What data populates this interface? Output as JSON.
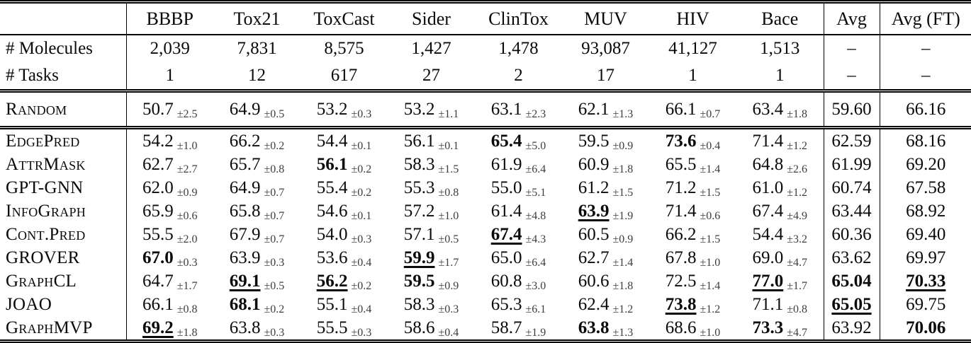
{
  "table": {
    "pm_prefix": "±",
    "columns": [
      "BBBP",
      "Tox21",
      "ToxCast",
      "Sider",
      "ClinTox",
      "MUV",
      "HIV",
      "Bace",
      "Avg",
      "Avg (FT)"
    ],
    "stats_rows": [
      {
        "label": "# Molecules",
        "values": [
          "2,039",
          "7,831",
          "8,575",
          "1,427",
          "1,478",
          "93,087",
          "41,127",
          "1,513",
          "–",
          "–"
        ]
      },
      {
        "label": "# Tasks",
        "values": [
          "1",
          "12",
          "617",
          "27",
          "2",
          "17",
          "1",
          "1",
          "–",
          "–"
        ]
      }
    ],
    "baseline_row": {
      "label": "Random",
      "cells": [
        {
          "v": "50.7",
          "pm": "2.5",
          "s": ""
        },
        {
          "v": "64.9",
          "pm": "0.5",
          "s": ""
        },
        {
          "v": "53.2",
          "pm": "0.3",
          "s": ""
        },
        {
          "v": "53.2",
          "pm": "1.1",
          "s": ""
        },
        {
          "v": "63.1",
          "pm": "2.3",
          "s": ""
        },
        {
          "v": "62.1",
          "pm": "1.3",
          "s": ""
        },
        {
          "v": "66.1",
          "pm": "0.7",
          "s": ""
        },
        {
          "v": "63.4",
          "pm": "1.8",
          "s": ""
        }
      ],
      "avg": {
        "v": "59.60",
        "s": ""
      },
      "avg_ft": {
        "v": "66.16",
        "s": ""
      }
    },
    "method_rows": [
      {
        "label": "EdgePred",
        "cells": [
          {
            "v": "54.2",
            "pm": "1.0",
            "s": ""
          },
          {
            "v": "66.2",
            "pm": "0.2",
            "s": ""
          },
          {
            "v": "54.4",
            "pm": "0.1",
            "s": ""
          },
          {
            "v": "56.1",
            "pm": "0.1",
            "s": ""
          },
          {
            "v": "65.4",
            "pm": "5.0",
            "s": "b"
          },
          {
            "v": "59.5",
            "pm": "0.9",
            "s": ""
          },
          {
            "v": "73.6",
            "pm": "0.4",
            "s": "b"
          },
          {
            "v": "71.4",
            "pm": "1.2",
            "s": ""
          }
        ],
        "avg": {
          "v": "62.59",
          "s": ""
        },
        "avg_ft": {
          "v": "68.16",
          "s": ""
        }
      },
      {
        "label": "AttrMask",
        "cells": [
          {
            "v": "62.7",
            "pm": "2.7",
            "s": ""
          },
          {
            "v": "65.7",
            "pm": "0.8",
            "s": ""
          },
          {
            "v": "56.1",
            "pm": "0.2",
            "s": "b"
          },
          {
            "v": "58.3",
            "pm": "1.5",
            "s": ""
          },
          {
            "v": "61.9",
            "pm": "6.4",
            "s": ""
          },
          {
            "v": "60.9",
            "pm": "1.8",
            "s": ""
          },
          {
            "v": "65.5",
            "pm": "1.4",
            "s": ""
          },
          {
            "v": "64.8",
            "pm": "2.6",
            "s": ""
          }
        ],
        "avg": {
          "v": "61.99",
          "s": ""
        },
        "avg_ft": {
          "v": "69.20",
          "s": ""
        }
      },
      {
        "label": "GPT-GNN",
        "cells": [
          {
            "v": "62.0",
            "pm": "0.9",
            "s": ""
          },
          {
            "v": "64.9",
            "pm": "0.7",
            "s": ""
          },
          {
            "v": "55.4",
            "pm": "0.2",
            "s": ""
          },
          {
            "v": "55.3",
            "pm": "0.8",
            "s": ""
          },
          {
            "v": "55.0",
            "pm": "5.1",
            "s": ""
          },
          {
            "v": "61.2",
            "pm": "1.5",
            "s": ""
          },
          {
            "v": "71.2",
            "pm": "1.5",
            "s": ""
          },
          {
            "v": "61.0",
            "pm": "1.2",
            "s": ""
          }
        ],
        "avg": {
          "v": "60.74",
          "s": ""
        },
        "avg_ft": {
          "v": "67.58",
          "s": ""
        }
      },
      {
        "label": "InfoGraph",
        "cells": [
          {
            "v": "65.9",
            "pm": "0.6",
            "s": ""
          },
          {
            "v": "65.8",
            "pm": "0.7",
            "s": ""
          },
          {
            "v": "54.6",
            "pm": "0.1",
            "s": ""
          },
          {
            "v": "57.2",
            "pm": "1.0",
            "s": ""
          },
          {
            "v": "61.4",
            "pm": "4.8",
            "s": ""
          },
          {
            "v": "63.9",
            "pm": "1.9",
            "s": "bu"
          },
          {
            "v": "71.4",
            "pm": "0.6",
            "s": ""
          },
          {
            "v": "67.4",
            "pm": "4.9",
            "s": ""
          }
        ],
        "avg": {
          "v": "63.44",
          "s": ""
        },
        "avg_ft": {
          "v": "68.92",
          "s": ""
        }
      },
      {
        "label": "Cont.Pred",
        "cells": [
          {
            "v": "55.5",
            "pm": "2.0",
            "s": ""
          },
          {
            "v": "67.9",
            "pm": "0.7",
            "s": ""
          },
          {
            "v": "54.0",
            "pm": "0.3",
            "s": ""
          },
          {
            "v": "57.1",
            "pm": "0.5",
            "s": ""
          },
          {
            "v": "67.4",
            "pm": "4.3",
            "s": "bu"
          },
          {
            "v": "60.5",
            "pm": "0.9",
            "s": ""
          },
          {
            "v": "66.2",
            "pm": "1.5",
            "s": ""
          },
          {
            "v": "54.4",
            "pm": "3.2",
            "s": ""
          }
        ],
        "avg": {
          "v": "60.36",
          "s": ""
        },
        "avg_ft": {
          "v": "69.40",
          "s": ""
        }
      },
      {
        "label": "GROVER",
        "cells": [
          {
            "v": "67.0",
            "pm": "0.3",
            "s": "b"
          },
          {
            "v": "63.9",
            "pm": "0.3",
            "s": ""
          },
          {
            "v": "53.6",
            "pm": "0.4",
            "s": ""
          },
          {
            "v": "59.9",
            "pm": "1.7",
            "s": "bu"
          },
          {
            "v": "65.0",
            "pm": "6.4",
            "s": ""
          },
          {
            "v": "62.7",
            "pm": "1.4",
            "s": ""
          },
          {
            "v": "67.8",
            "pm": "1.0",
            "s": ""
          },
          {
            "v": "69.0",
            "pm": "4.7",
            "s": ""
          }
        ],
        "avg": {
          "v": "63.62",
          "s": ""
        },
        "avg_ft": {
          "v": "69.97",
          "s": ""
        }
      },
      {
        "label": "GraphCL",
        "cells": [
          {
            "v": "64.7",
            "pm": "1.7",
            "s": ""
          },
          {
            "v": "69.1",
            "pm": "0.5",
            "s": "bu"
          },
          {
            "v": "56.2",
            "pm": "0.2",
            "s": "bu"
          },
          {
            "v": "59.5",
            "pm": "0.9",
            "s": "b"
          },
          {
            "v": "60.8",
            "pm": "3.0",
            "s": ""
          },
          {
            "v": "60.6",
            "pm": "1.8",
            "s": ""
          },
          {
            "v": "72.5",
            "pm": "1.4",
            "s": ""
          },
          {
            "v": "77.0",
            "pm": "1.7",
            "s": "bu"
          }
        ],
        "avg": {
          "v": "65.04",
          "s": "b"
        },
        "avg_ft": {
          "v": "70.33",
          "s": "bu"
        }
      },
      {
        "label": "JOAO",
        "cells": [
          {
            "v": "66.1",
            "pm": "0.8",
            "s": ""
          },
          {
            "v": "68.1",
            "pm": "0.2",
            "s": "b"
          },
          {
            "v": "55.1",
            "pm": "0.4",
            "s": ""
          },
          {
            "v": "58.3",
            "pm": "0.3",
            "s": ""
          },
          {
            "v": "65.3",
            "pm": "6.1",
            "s": ""
          },
          {
            "v": "62.4",
            "pm": "1.2",
            "s": ""
          },
          {
            "v": "73.8",
            "pm": "1.2",
            "s": "bu"
          },
          {
            "v": "71.1",
            "pm": "0.8",
            "s": ""
          }
        ],
        "avg": {
          "v": "65.05",
          "s": "bu"
        },
        "avg_ft": {
          "v": "69.75",
          "s": ""
        }
      },
      {
        "label": "GraphMVP",
        "cells": [
          {
            "v": "69.2",
            "pm": "1.8",
            "s": "bu"
          },
          {
            "v": "63.8",
            "pm": "0.3",
            "s": ""
          },
          {
            "v": "55.5",
            "pm": "0.3",
            "s": ""
          },
          {
            "v": "58.6",
            "pm": "0.4",
            "s": ""
          },
          {
            "v": "58.7",
            "pm": "1.9",
            "s": ""
          },
          {
            "v": "63.8",
            "pm": "1.3",
            "s": "b"
          },
          {
            "v": "68.6",
            "pm": "1.0",
            "s": ""
          },
          {
            "v": "73.3",
            "pm": "4.7",
            "s": "b"
          }
        ],
        "avg": {
          "v": "63.92",
          "s": ""
        },
        "avg_ft": {
          "v": "70.06",
          "s": "b"
        }
      }
    ]
  }
}
